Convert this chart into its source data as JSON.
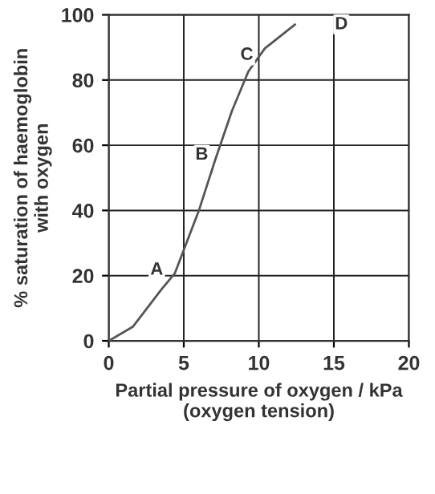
{
  "chart_data": {
    "type": "line",
    "xlabel": "Partial pressure of oxygen / kPa\n(oxygen tension)",
    "ylabel": "% saturation of haemoglobin\nwith oxygen",
    "x": [
      0,
      1.6,
      3.5,
      4.4,
      6.0,
      7.1,
      8.2,
      9.3,
      10.4,
      12.4
    ],
    "series": [
      {
        "color": "#555555",
        "values": [
          0,
          4.3,
          15.7,
          20.7,
          39.9,
          55.6,
          70.4,
          82.6,
          89.7,
          97
        ]
      }
    ],
    "annotations": [
      {
        "text": "A",
        "x": 3.2,
        "y": 21.7
      },
      {
        "text": "B",
        "x": 6.2,
        "y": 57
      },
      {
        "text": "C",
        "x": 9.2,
        "y": 87.6
      },
      {
        "text": "D",
        "x": 15.5,
        "y": 97
      }
    ],
    "xlim": [
      0,
      20
    ],
    "ylim": [
      0,
      100
    ],
    "xticks": [
      0,
      5,
      10,
      15,
      20
    ],
    "yticks": [
      0,
      20,
      40,
      60,
      80,
      100
    ],
    "grid": true,
    "marker": "none",
    "line_style": "solid"
  }
}
